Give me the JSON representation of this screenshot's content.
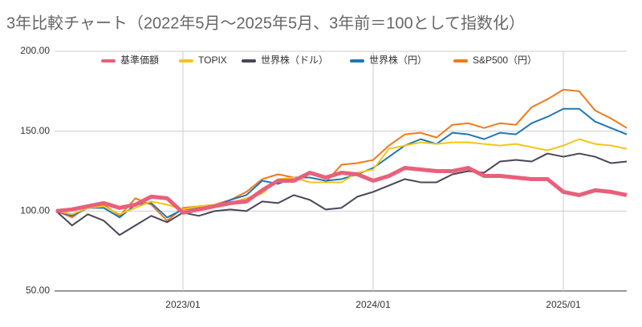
{
  "chart_data": {
    "type": "line",
    "title": "3年比較チャート（2022年5月～2025年5月、3年前＝100として指数化）",
    "categories": [
      null,
      null,
      null,
      null,
      null,
      null,
      null,
      null,
      "2023/01",
      null,
      null,
      null,
      null,
      null,
      null,
      null,
      null,
      null,
      null,
      null,
      "2024/01",
      null,
      null,
      null,
      null,
      null,
      null,
      null,
      null,
      null,
      null,
      null,
      "2025/01",
      null,
      null,
      null,
      null
    ],
    "ylim": [
      50,
      200
    ],
    "yticks": [
      {
        "value": 50,
        "label": "50.00"
      },
      {
        "value": 100,
        "label": "100.00"
      },
      {
        "value": 150,
        "label": "150.00"
      },
      {
        "value": 200,
        "label": "200.00"
      }
    ],
    "grid": true,
    "legend": "top",
    "series": [
      {
        "name": "基準価額",
        "color": "#e8607a",
        "values": [
          100,
          101,
          103,
          105,
          102,
          104,
          109,
          108,
          99,
          101,
          103,
          105,
          106,
          113,
          119,
          119,
          124,
          121,
          124,
          123,
          119,
          122,
          127,
          126,
          125,
          125,
          127,
          122,
          122,
          121,
          120,
          120,
          112,
          110,
          113,
          112,
          110
        ]
      },
      {
        "name": "TOPIX",
        "color": "#f5c518",
        "values": [
          100,
          98,
          102,
          103,
          98,
          102,
          106,
          104,
          101,
          103,
          104,
          105,
          108,
          111,
          120,
          121,
          118,
          118,
          118,
          124,
          126,
          139,
          141,
          143,
          142,
          143,
          143,
          142,
          141,
          142,
          140,
          138,
          141,
          145,
          142,
          141,
          139
        ]
      },
      {
        "name": "世界株（ドル）",
        "color": "#4a4558",
        "values": [
          100,
          91,
          98,
          94,
          85,
          91,
          97,
          93,
          99,
          97,
          100,
          101,
          100,
          106,
          105,
          110,
          107,
          101,
          102,
          109,
          112,
          116,
          120,
          118,
          118,
          123,
          125,
          124,
          131,
          132,
          131,
          136,
          134,
          136,
          134,
          130,
          131
        ]
      },
      {
        "name": "世界株（円）",
        "color": "#1f77b4",
        "values": [
          100,
          97,
          102,
          102,
          96,
          104,
          105,
          96,
          101,
          102,
          103,
          107,
          110,
          119,
          117,
          121,
          121,
          119,
          120,
          123,
          127,
          134,
          141,
          145,
          142,
          149,
          148,
          145,
          149,
          148,
          155,
          159,
          164,
          164,
          156,
          152,
          148
        ]
      },
      {
        "name": "S&P500（円）",
        "color": "#f07a1a",
        "values": [
          100,
          96,
          103,
          104,
          97,
          108,
          104,
          94,
          102,
          103,
          104,
          107,
          112,
          120,
          123,
          121,
          118,
          118,
          129,
          130,
          132,
          141,
          148,
          149,
          146,
          154,
          155,
          152,
          155,
          154,
          165,
          170,
          176,
          175,
          163,
          158,
          152
        ]
      }
    ]
  }
}
